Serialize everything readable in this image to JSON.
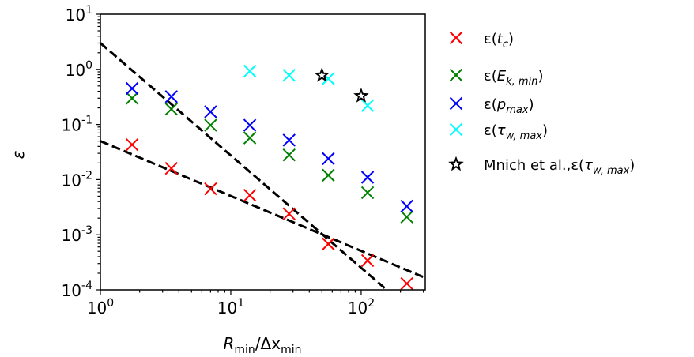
{
  "chart_data": {
    "type": "scatter",
    "xscale": "log",
    "yscale": "log",
    "xlim": [
      1,
      310
    ],
    "ylim": [
      0.0001,
      10
    ],
    "xlabel": {
      "main": "R",
      "sub": "min",
      "mid": "/Δx",
      "sub2": "min"
    },
    "ylabel": "ε",
    "x_ticks": [
      {
        "value": 1,
        "base": "10",
        "exp": "0"
      },
      {
        "value": 10,
        "base": "10",
        "exp": "1"
      },
      {
        "value": 100,
        "base": "10",
        "exp": "2"
      }
    ],
    "y_ticks": [
      {
        "value": 10,
        "base": "10",
        "exp": "1"
      },
      {
        "value": 1,
        "base": "10",
        "exp": "0"
      },
      {
        "value": 0.1,
        "base": "10",
        "exp": "-1"
      },
      {
        "value": 0.01,
        "base": "10",
        "exp": "-2"
      },
      {
        "value": 0.001,
        "base": "10",
        "exp": "-3"
      },
      {
        "value": 0.0001,
        "base": "10",
        "exp": "-4"
      }
    ],
    "legend_position": "outside-right",
    "series": [
      {
        "name": "ε(t_c)",
        "label_parts": [
          {
            "t": "ε("
          },
          {
            "t": "t",
            "it": true
          },
          {
            "t": "c",
            "sub": true
          },
          {
            "t": ")"
          }
        ],
        "marker": "x",
        "color": "#ff0000",
        "x": [
          1.75,
          3.5,
          7,
          14,
          28,
          56,
          112,
          224
        ],
        "y": [
          0.043,
          0.016,
          0.0068,
          0.0052,
          0.0024,
          0.00068,
          0.00034,
          0.00013
        ]
      },
      {
        "name": "ε(E_{k,min})",
        "label_parts": [
          {
            "t": "ε("
          },
          {
            "t": "E",
            "it": true
          },
          {
            "t": "k, min",
            "sub": true
          },
          {
            "t": ")"
          }
        ],
        "marker": "x",
        "color": "#008000",
        "x": [
          1.75,
          3.5,
          7,
          14,
          28,
          56,
          112,
          224
        ],
        "y": [
          0.3,
          0.19,
          0.097,
          0.057,
          0.028,
          0.012,
          0.0058,
          0.0021
        ]
      },
      {
        "name": "ε(p_max)",
        "label_parts": [
          {
            "t": "ε("
          },
          {
            "t": "p",
            "it": true
          },
          {
            "t": "max",
            "sub": true
          },
          {
            "t": ")"
          }
        ],
        "marker": "x",
        "color": "#0000ff",
        "x": [
          1.75,
          3.5,
          7,
          14,
          28,
          56,
          112,
          224
        ],
        "y": [
          0.45,
          0.32,
          0.17,
          0.097,
          0.052,
          0.024,
          0.011,
          0.0033
        ]
      },
      {
        "name": "ε(τ_{w,max})",
        "label_parts": [
          {
            "t": "ε("
          },
          {
            "t": "τ",
            "it": true
          },
          {
            "t": "w, max",
            "sub": true
          },
          {
            "t": ")"
          }
        ],
        "marker": "x",
        "color": "#00ffff",
        "x": [
          14,
          28,
          56,
          112
        ],
        "y": [
          0.93,
          0.78,
          0.68,
          0.22
        ]
      },
      {
        "name": "Mnich et al.,ε(τ_{w,max})",
        "label_parts": [
          {
            "t": "Mnich et al.,ε("
          },
          {
            "t": "τ",
            "it": true
          },
          {
            "t": "w, max",
            "sub": true
          },
          {
            "t": ")"
          }
        ],
        "marker": "star",
        "color": "#000000",
        "x": [
          50,
          100
        ],
        "y": [
          0.78,
          0.33
        ]
      }
    ],
    "fit_lines": [
      {
        "x": [
          1,
          310
        ],
        "y": [
          3.0,
          2.5e-05
        ]
      },
      {
        "x": [
          1,
          310
        ],
        "y": [
          0.05,
          0.000165
        ]
      }
    ]
  }
}
